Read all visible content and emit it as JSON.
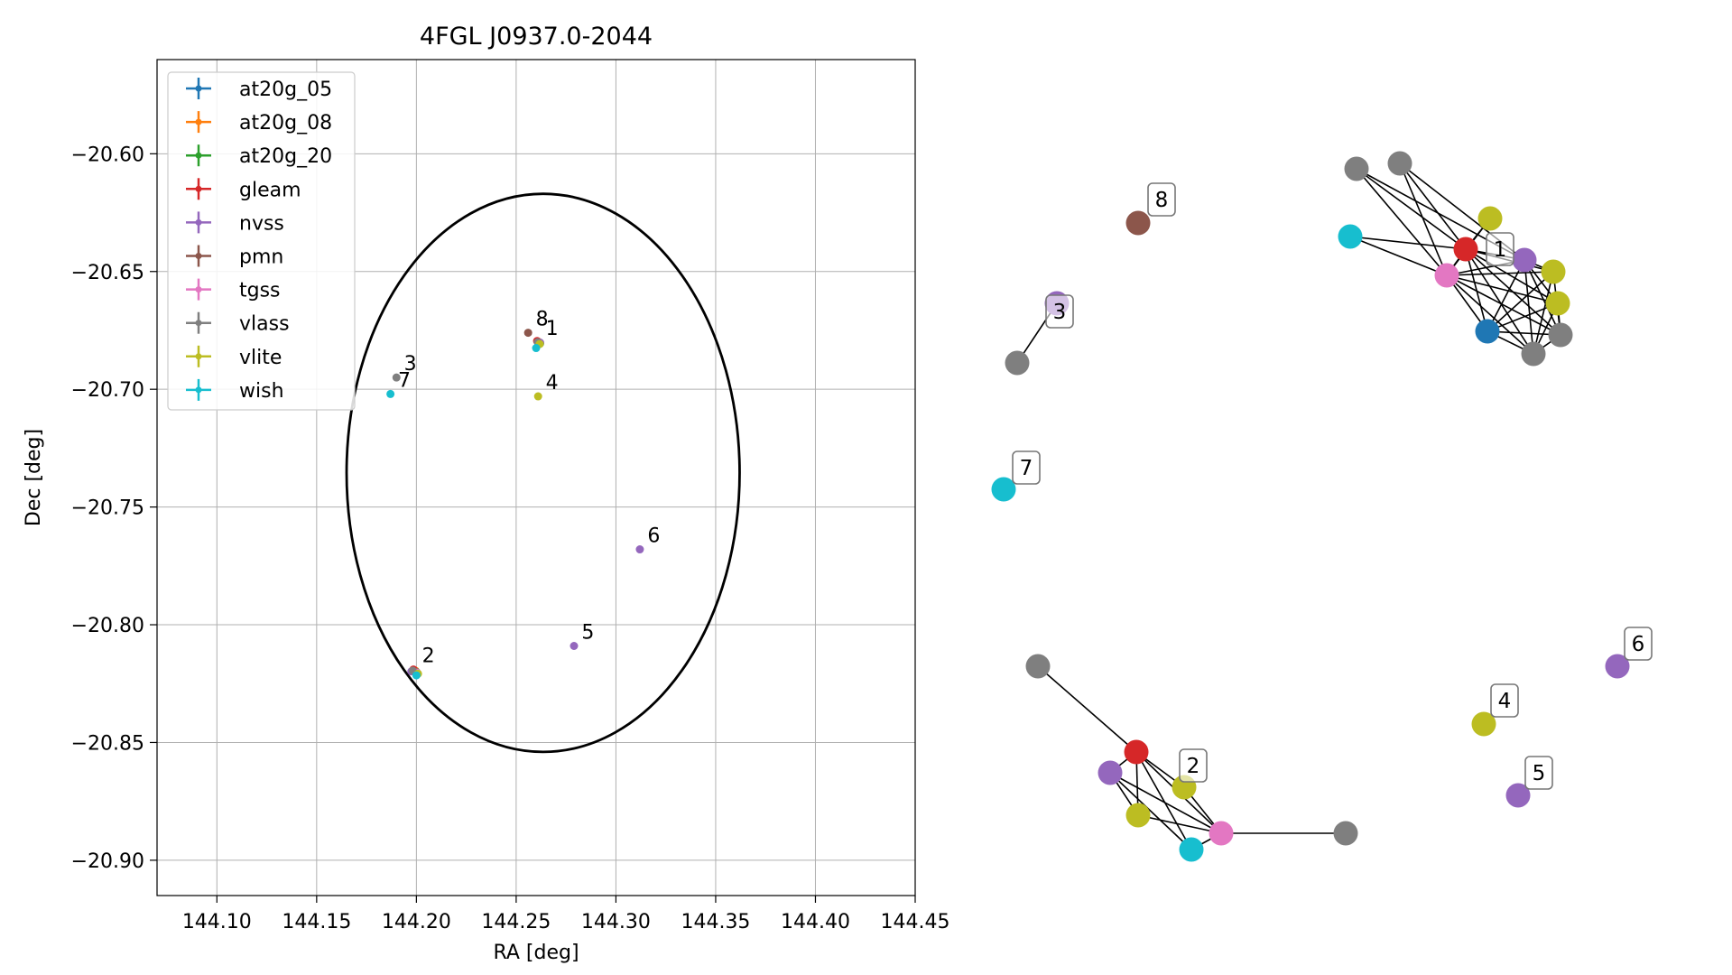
{
  "chart_data": [
    {
      "type": "scatter",
      "title": "4FGL J0937.0-2044",
      "xlabel": "RA [deg]",
      "ylabel": "Dec [deg]",
      "xlim": [
        144.07,
        144.45
      ],
      "ylim": [
        -20.915,
        -20.56
      ],
      "xticks": [
        144.1,
        144.15,
        144.2,
        144.25,
        144.3,
        144.35,
        144.4,
        144.45
      ],
      "xtick_labels": [
        "144.10",
        "144.15",
        "144.20",
        "144.25",
        "144.30",
        "144.35",
        "144.40",
        "144.45"
      ],
      "yticks": [
        -20.6,
        -20.65,
        -20.7,
        -20.75,
        -20.8,
        -20.85,
        -20.9
      ],
      "ytick_labels": [
        "−20.60",
        "−20.65",
        "−20.70",
        "−20.75",
        "−20.80",
        "−20.85",
        "−20.90"
      ],
      "grid": true,
      "legend_position": "top-left",
      "ellipse": {
        "center": [
          144.2635,
          -20.7355
        ],
        "semi_axis_ra": 0.0985,
        "semi_axis_dec": 0.1185
      },
      "series": [
        {
          "name": "at20g_05",
          "color": "#1f77b4",
          "points": [
            [
              144.261,
              -20.68
            ],
            [
              144.199,
              -20.8195
            ]
          ]
        },
        {
          "name": "at20g_08",
          "color": "#ff7f0e",
          "points": [
            [
              144.2615,
              -20.68
            ],
            [
              144.1995,
              -20.8195
            ]
          ]
        },
        {
          "name": "at20g_20",
          "color": "#2ca02c",
          "points": [
            [
              144.262,
              -20.6805
            ],
            [
              144.2,
              -20.82
            ]
          ]
        },
        {
          "name": "gleam",
          "color": "#d62728",
          "points": [
            [
              144.2605,
              -20.6795
            ],
            [
              144.1985,
              -20.819
            ]
          ]
        },
        {
          "name": "nvss",
          "color": "#9467bd",
          "points": [
            [
              144.262,
              -20.6802
            ],
            [
              144.1975,
              -20.8198
            ],
            [
              144.279,
              -20.809
            ],
            [
              144.312,
              -20.768
            ]
          ]
        },
        {
          "name": "pmn",
          "color": "#8c564b",
          "points": [
            [
              144.256,
              -20.676
            ]
          ]
        },
        {
          "name": "tgss",
          "color": "#e377c2",
          "points": [
            [
              144.2612,
              -20.6803
            ],
            [
              144.2003,
              -20.8203
            ]
          ]
        },
        {
          "name": "vlass",
          "color": "#7f7f7f",
          "points": [
            [
              144.2608,
              -20.68
            ],
            [
              144.1982,
              -20.8195
            ],
            [
              144.19,
              -20.695
            ]
          ]
        },
        {
          "name": "vlite",
          "color": "#bcbd22",
          "points": [
            [
              144.2618,
              -20.6808
            ],
            [
              144.2008,
              -20.8208
            ],
            [
              144.261,
              -20.703
            ]
          ]
        },
        {
          "name": "wish",
          "color": "#17becf",
          "points": [
            [
              144.26,
              -20.6825
            ],
            [
              144.2,
              -20.8215
            ],
            [
              144.187,
              -20.702
            ]
          ]
        }
      ],
      "annotations": [
        {
          "text": "1",
          "x": 144.263,
          "y": -20.68
        },
        {
          "text": "2",
          "x": 144.201,
          "y": -20.819
        },
        {
          "text": "3",
          "x": 144.192,
          "y": -20.695
        },
        {
          "text": "4",
          "x": 144.263,
          "y": -20.703
        },
        {
          "text": "5",
          "x": 144.281,
          "y": -20.809
        },
        {
          "text": "6",
          "x": 144.314,
          "y": -20.768
        },
        {
          "text": "7",
          "x": 144.189,
          "y": -20.702
        },
        {
          "text": "8",
          "x": 144.258,
          "y": -20.676
        }
      ]
    },
    {
      "type": "network",
      "nodes": [
        {
          "id": "g1",
          "color": "#7f7f7f"
        },
        {
          "id": "g2",
          "color": "#7f7f7f"
        },
        {
          "id": "c1",
          "color": "#17becf"
        },
        {
          "id": "y1",
          "color": "#bcbd22"
        },
        {
          "id": "r1",
          "color": "#d62728"
        },
        {
          "id": "p1",
          "color": "#9467bd"
        },
        {
          "id": "pk1",
          "color": "#e377c2"
        },
        {
          "id": "y2",
          "color": "#bcbd22"
        },
        {
          "id": "y3",
          "color": "#bcbd22"
        },
        {
          "id": "b1",
          "color": "#1f77b4"
        },
        {
          "id": "g3",
          "color": "#7f7f7f"
        },
        {
          "id": "g4",
          "color": "#7f7f7f"
        },
        {
          "id": "br8",
          "color": "#8c564b"
        },
        {
          "id": "p3",
          "color": "#9467bd"
        },
        {
          "id": "g5",
          "color": "#7f7f7f"
        },
        {
          "id": "c7",
          "color": "#17becf"
        },
        {
          "id": "g6",
          "color": "#7f7f7f"
        },
        {
          "id": "r2",
          "color": "#d62728"
        },
        {
          "id": "p2",
          "color": "#9467bd"
        },
        {
          "id": "y4",
          "color": "#bcbd22"
        },
        {
          "id": "y5",
          "color": "#bcbd22"
        },
        {
          "id": "pk2",
          "color": "#e377c2"
        },
        {
          "id": "c2",
          "color": "#17becf"
        },
        {
          "id": "g7",
          "color": "#7f7f7f"
        },
        {
          "id": "p6",
          "color": "#9467bd"
        },
        {
          "id": "y6",
          "color": "#bcbd22"
        },
        {
          "id": "p5",
          "color": "#9467bd"
        }
      ],
      "edges": [
        [
          "g1",
          "r1"
        ],
        [
          "g1",
          "pk1"
        ],
        [
          "g1",
          "p1"
        ],
        [
          "g2",
          "r1"
        ],
        [
          "g2",
          "pk1"
        ],
        [
          "g2",
          "p1"
        ],
        [
          "c1",
          "r1"
        ],
        [
          "c1",
          "pk1"
        ],
        [
          "y1",
          "r1"
        ],
        [
          "y1",
          "pk1"
        ],
        [
          "r1",
          "pk1"
        ],
        [
          "r1",
          "p1"
        ],
        [
          "r1",
          "y2"
        ],
        [
          "r1",
          "y3"
        ],
        [
          "r1",
          "b1"
        ],
        [
          "r1",
          "g3"
        ],
        [
          "r1",
          "g4"
        ],
        [
          "pk1",
          "p1"
        ],
        [
          "pk1",
          "y2"
        ],
        [
          "pk1",
          "y3"
        ],
        [
          "pk1",
          "b1"
        ],
        [
          "pk1",
          "g3"
        ],
        [
          "pk1",
          "g4"
        ],
        [
          "p1",
          "y2"
        ],
        [
          "p1",
          "y3"
        ],
        [
          "p1",
          "b1"
        ],
        [
          "p1",
          "g3"
        ],
        [
          "p1",
          "g4"
        ],
        [
          "y2",
          "b1"
        ],
        [
          "y2",
          "g3"
        ],
        [
          "y2",
          "g4"
        ],
        [
          "y3",
          "b1"
        ],
        [
          "y3",
          "g3"
        ],
        [
          "y3",
          "g4"
        ],
        [
          "b1",
          "g3"
        ],
        [
          "b1",
          "g4"
        ],
        [
          "g3",
          "g4"
        ],
        [
          "p3",
          "g5"
        ],
        [
          "g6",
          "r2"
        ],
        [
          "r2",
          "p2"
        ],
        [
          "r2",
          "y4"
        ],
        [
          "r2",
          "y5"
        ],
        [
          "r2",
          "pk2"
        ],
        [
          "r2",
          "c2"
        ],
        [
          "p2",
          "y5"
        ],
        [
          "p2",
          "pk2"
        ],
        [
          "p2",
          "c2"
        ],
        [
          "y4",
          "pk2"
        ],
        [
          "y5",
          "pk2"
        ],
        [
          "pk2",
          "c2"
        ],
        [
          "pk2",
          "g7"
        ]
      ],
      "labels": [
        "1",
        "2",
        "3",
        "4",
        "5",
        "6",
        "7",
        "8"
      ]
    }
  ]
}
